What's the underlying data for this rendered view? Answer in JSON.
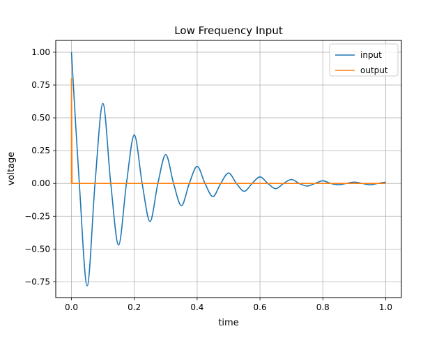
{
  "chart_data": {
    "type": "line",
    "title": "Low Frequency Input",
    "xlabel": "time",
    "ylabel": "voltage",
    "xlim": [
      -0.05,
      1.05
    ],
    "ylim": [
      -0.87,
      1.09
    ],
    "xticks": [
      0.0,
      0.2,
      0.4,
      0.6,
      0.8,
      1.0
    ],
    "xtick_labels": [
      "0.0",
      "0.2",
      "0.4",
      "0.6",
      "0.8",
      "1.0"
    ],
    "yticks": [
      -0.75,
      -0.5,
      -0.25,
      0.0,
      0.25,
      0.5,
      0.75,
      1.0
    ],
    "ytick_labels": [
      "−0.75",
      "−0.50",
      "−0.25",
      "0.00",
      "0.25",
      "0.50",
      "0.75",
      "1.00"
    ],
    "grid": true,
    "legend_position": "top-right",
    "series": [
      {
        "name": "input",
        "color": "#1f77b4",
        "x": [
          0.0,
          0.025,
          0.05,
          0.075,
          0.1,
          0.125,
          0.15,
          0.175,
          0.2,
          0.225,
          0.25,
          0.275,
          0.3,
          0.325,
          0.35,
          0.375,
          0.4,
          0.425,
          0.45,
          0.475,
          0.5,
          0.525,
          0.55,
          0.575,
          0.6,
          0.625,
          0.65,
          0.675,
          0.7,
          0.725,
          0.75,
          0.775,
          0.8,
          0.825,
          0.85,
          0.875,
          0.9,
          0.925,
          0.95,
          0.975,
          1.0
        ],
        "y": [
          1.0,
          0.0,
          -0.78,
          0.0,
          0.61,
          0.0,
          -0.47,
          0.0,
          0.37,
          0.0,
          -0.29,
          0.0,
          0.22,
          0.0,
          -0.17,
          0.0,
          0.13,
          0.0,
          -0.1,
          0.0,
          0.08,
          0.0,
          -0.06,
          0.0,
          0.05,
          0.0,
          -0.04,
          0.0,
          0.03,
          0.0,
          -0.02,
          0.0,
          0.02,
          0.0,
          -0.01,
          0.0,
          0.01,
          0.0,
          -0.01,
          0.0,
          0.01
        ]
      },
      {
        "name": "output",
        "color": "#ff7f0e",
        "x": [
          0.0,
          0.0,
          0.002,
          1.0
        ],
        "y": [
          0.0,
          0.8,
          0.0,
          0.0
        ]
      }
    ]
  }
}
